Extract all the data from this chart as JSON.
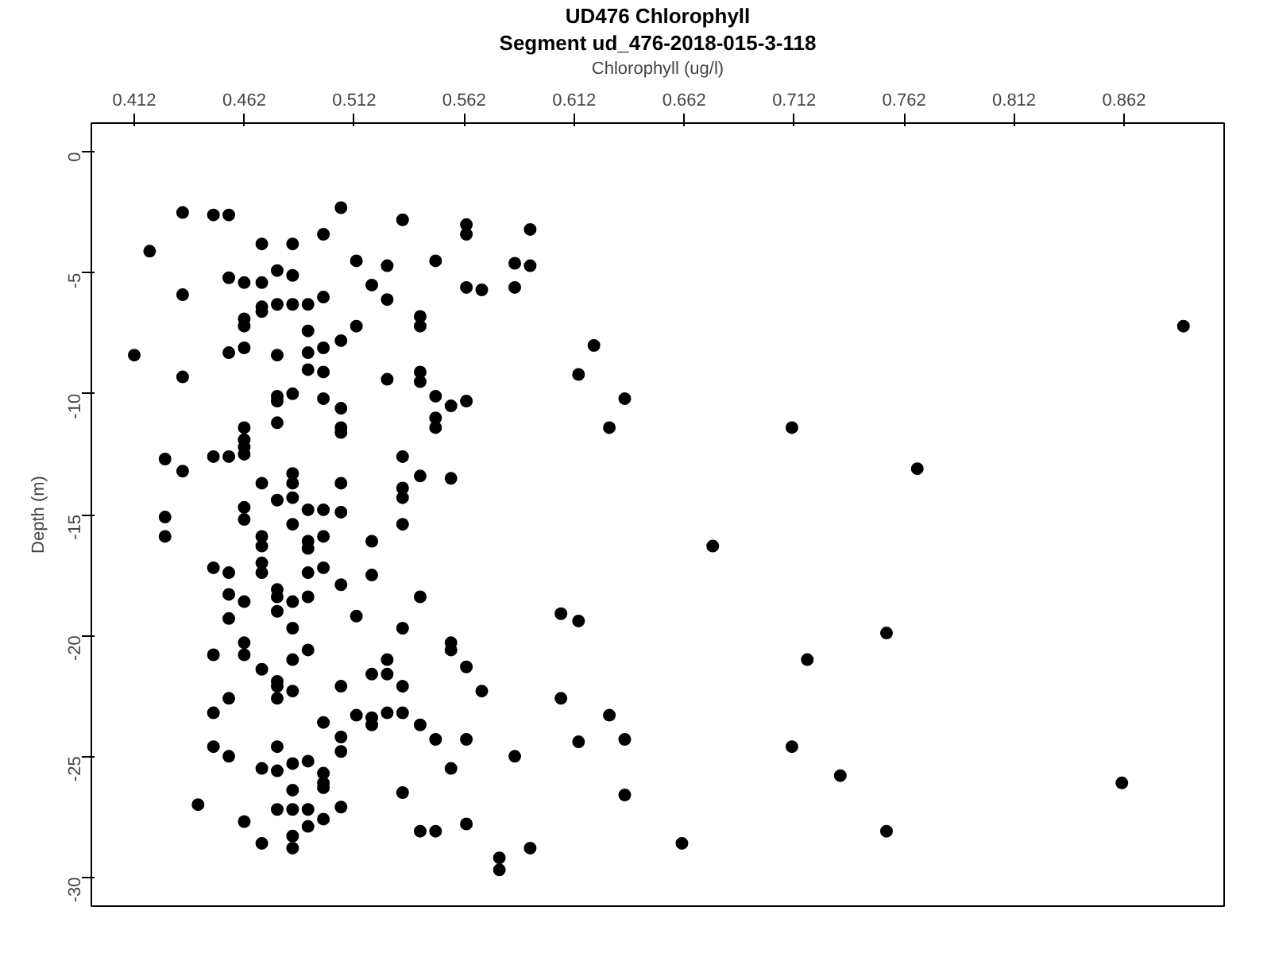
{
  "chart_data": {
    "type": "scatter",
    "title": "UD476 Chlorophyll",
    "subtitle": "Segment ud_476-2018-015-3-118",
    "xlabel": "Chlorophyll (ug/l)",
    "ylabel": "Depth (m)",
    "xlim": [
      0.3925,
      0.9075
    ],
    "ylim": [
      -31.2,
      1.2
    ],
    "xticks": [
      0.412,
      0.462,
      0.512,
      0.562,
      0.612,
      0.662,
      0.712,
      0.762,
      0.812,
      0.862
    ],
    "yticks": [
      0,
      -5,
      -10,
      -15,
      -20,
      -25,
      -30
    ],
    "grid": false,
    "marker": "circle",
    "series": [
      {
        "color": "#000000",
        "x": [
          0.434,
          0.448,
          0.455,
          0.506,
          0.534,
          0.419,
          0.47,
          0.484,
          0.498,
          0.513,
          0.527,
          0.455,
          0.462,
          0.47,
          0.477,
          0.484,
          0.52,
          0.434,
          0.527,
          0.498,
          0.47,
          0.47,
          0.477,
          0.484,
          0.491,
          0.462,
          0.462,
          0.491,
          0.513,
          0.412,
          0.455,
          0.462,
          0.477,
          0.491,
          0.498,
          0.506,
          0.434,
          0.491,
          0.498,
          0.527,
          0.477,
          0.477,
          0.484,
          0.498,
          0.506,
          0.477,
          0.506,
          0.506,
          0.462,
          0.462,
          0.462,
          0.462,
          0.426,
          0.448,
          0.455,
          0.434,
          0.534,
          0.484,
          0.484,
          0.47,
          0.506,
          0.534,
          0.534,
          0.477,
          0.484,
          0.491,
          0.498,
          0.506,
          0.462,
          0.462,
          0.426,
          0.484,
          0.534,
          0.426,
          0.47,
          0.491,
          0.498,
          0.52,
          0.47,
          0.491,
          0.448,
          0.455,
          0.47,
          0.47,
          0.491,
          0.498,
          0.506,
          0.52,
          0.455,
          0.462,
          0.477,
          0.477,
          0.477,
          0.484,
          0.491,
          0.455,
          0.484,
          0.513,
          0.534,
          0.462,
          0.448,
          0.462,
          0.491,
          0.484,
          0.47,
          0.527,
          0.52,
          0.527,
          0.477,
          0.477,
          0.484,
          0.477,
          0.455,
          0.506,
          0.534,
          0.448,
          0.498,
          0.513,
          0.52,
          0.52,
          0.527,
          0.534,
          0.506,
          0.506,
          0.448,
          0.455,
          0.477,
          0.47,
          0.477,
          0.484,
          0.491,
          0.498,
          0.498,
          0.498,
          0.534,
          0.484,
          0.441,
          0.477,
          0.484,
          0.491,
          0.506,
          0.498,
          0.491,
          0.462,
          0.47,
          0.484,
          0.484,
          0.542,
          0.549,
          0.563,
          0.563,
          0.592,
          0.549,
          0.585,
          0.592,
          0.563,
          0.57,
          0.585,
          0.542,
          0.542,
          0.621,
          0.614,
          0.542,
          0.542,
          0.549,
          0.556,
          0.563,
          0.635,
          0.628,
          0.549,
          0.549,
          0.542,
          0.556,
          0.675,
          0.542,
          0.606,
          0.614,
          0.556,
          0.556,
          0.563,
          0.57,
          0.606,
          0.542,
          0.549,
          0.563,
          0.585,
          0.556,
          0.614,
          0.628,
          0.635,
          0.635,
          0.563,
          0.592,
          0.578,
          0.578,
          0.661,
          0.889,
          0.711,
          0.768,
          0.754,
          0.718,
          0.711,
          0.733,
          0.861,
          0.754
        ],
        "values": [
          -2.5,
          -2.6,
          -2.6,
          -2.3,
          -2.8,
          -4.1,
          -3.8,
          -3.8,
          -3.4,
          -4.5,
          -4.7,
          -5.2,
          -5.4,
          -5.4,
          -4.9,
          -5.1,
          -5.5,
          -5.9,
          -6.1,
          -6.0,
          -6.4,
          -6.6,
          -6.3,
          -6.3,
          -6.3,
          -6.9,
          -7.2,
          -7.4,
          -7.2,
          -8.4,
          -8.3,
          -8.1,
          -8.4,
          -8.3,
          -8.1,
          -7.8,
          -9.3,
          -9.0,
          -9.1,
          -9.4,
          -10.1,
          -10.3,
          -10.0,
          -10.2,
          -10.6,
          -11.2,
          -11.4,
          -11.6,
          -11.4,
          -11.9,
          -12.2,
          -12.5,
          -12.7,
          -12.6,
          -12.6,
          -13.2,
          -12.6,
          -13.3,
          -13.7,
          -13.7,
          -13.7,
          -13.9,
          -14.3,
          -14.4,
          -14.3,
          -14.8,
          -14.8,
          -14.9,
          -14.7,
          -15.2,
          -15.1,
          -15.4,
          -15.4,
          -15.9,
          -15.9,
          -16.1,
          -15.9,
          -16.1,
          -16.3,
          -16.4,
          -17.2,
          -17.4,
          -17.0,
          -17.4,
          -17.4,
          -17.2,
          -17.9,
          -17.5,
          -18.3,
          -18.6,
          -18.1,
          -18.4,
          -19.0,
          -18.6,
          -18.4,
          -19.3,
          -19.7,
          -19.2,
          -19.7,
          -20.3,
          -20.8,
          -20.8,
          -20.6,
          -21.0,
          -21.4,
          -21.0,
          -21.6,
          -21.6,
          -21.9,
          -22.1,
          -22.3,
          -22.6,
          -22.6,
          -22.1,
          -22.1,
          -23.2,
          -23.6,
          -23.3,
          -23.4,
          -23.7,
          -23.2,
          -23.2,
          -24.2,
          -24.8,
          -24.6,
          -25.0,
          -24.6,
          -25.5,
          -25.6,
          -25.3,
          -25.2,
          -25.7,
          -26.1,
          -26.3,
          -26.5,
          -26.4,
          -27.0,
          -27.2,
          -27.2,
          -27.2,
          -27.1,
          -27.6,
          -27.9,
          -27.7,
          -28.6,
          -28.3,
          -28.8,
          -28.1,
          -28.1,
          -3.0,
          -3.4,
          -3.2,
          -4.5,
          -4.6,
          -4.7,
          -5.6,
          -5.7,
          -5.6,
          -6.8,
          -7.2,
          -8.0,
          -9.2,
          -9.1,
          -9.5,
          -10.1,
          -10.5,
          -10.3,
          -10.2,
          -11.4,
          -11.0,
          -11.4,
          -13.4,
          -13.5,
          -16.3,
          -18.4,
          -19.1,
          -19.4,
          -20.3,
          -20.6,
          -21.3,
          -22.3,
          -22.6,
          -23.7,
          -24.3,
          -24.3,
          -25.0,
          -25.5,
          -24.4,
          -23.3,
          -24.3,
          -26.6,
          -27.8,
          -28.8,
          -29.2,
          -29.7,
          -28.6,
          -7.2,
          -11.4,
          -13.1,
          -19.9,
          -21.0,
          -24.6,
          -25.8,
          -26.1,
          -28.1
        ]
      }
    ]
  }
}
